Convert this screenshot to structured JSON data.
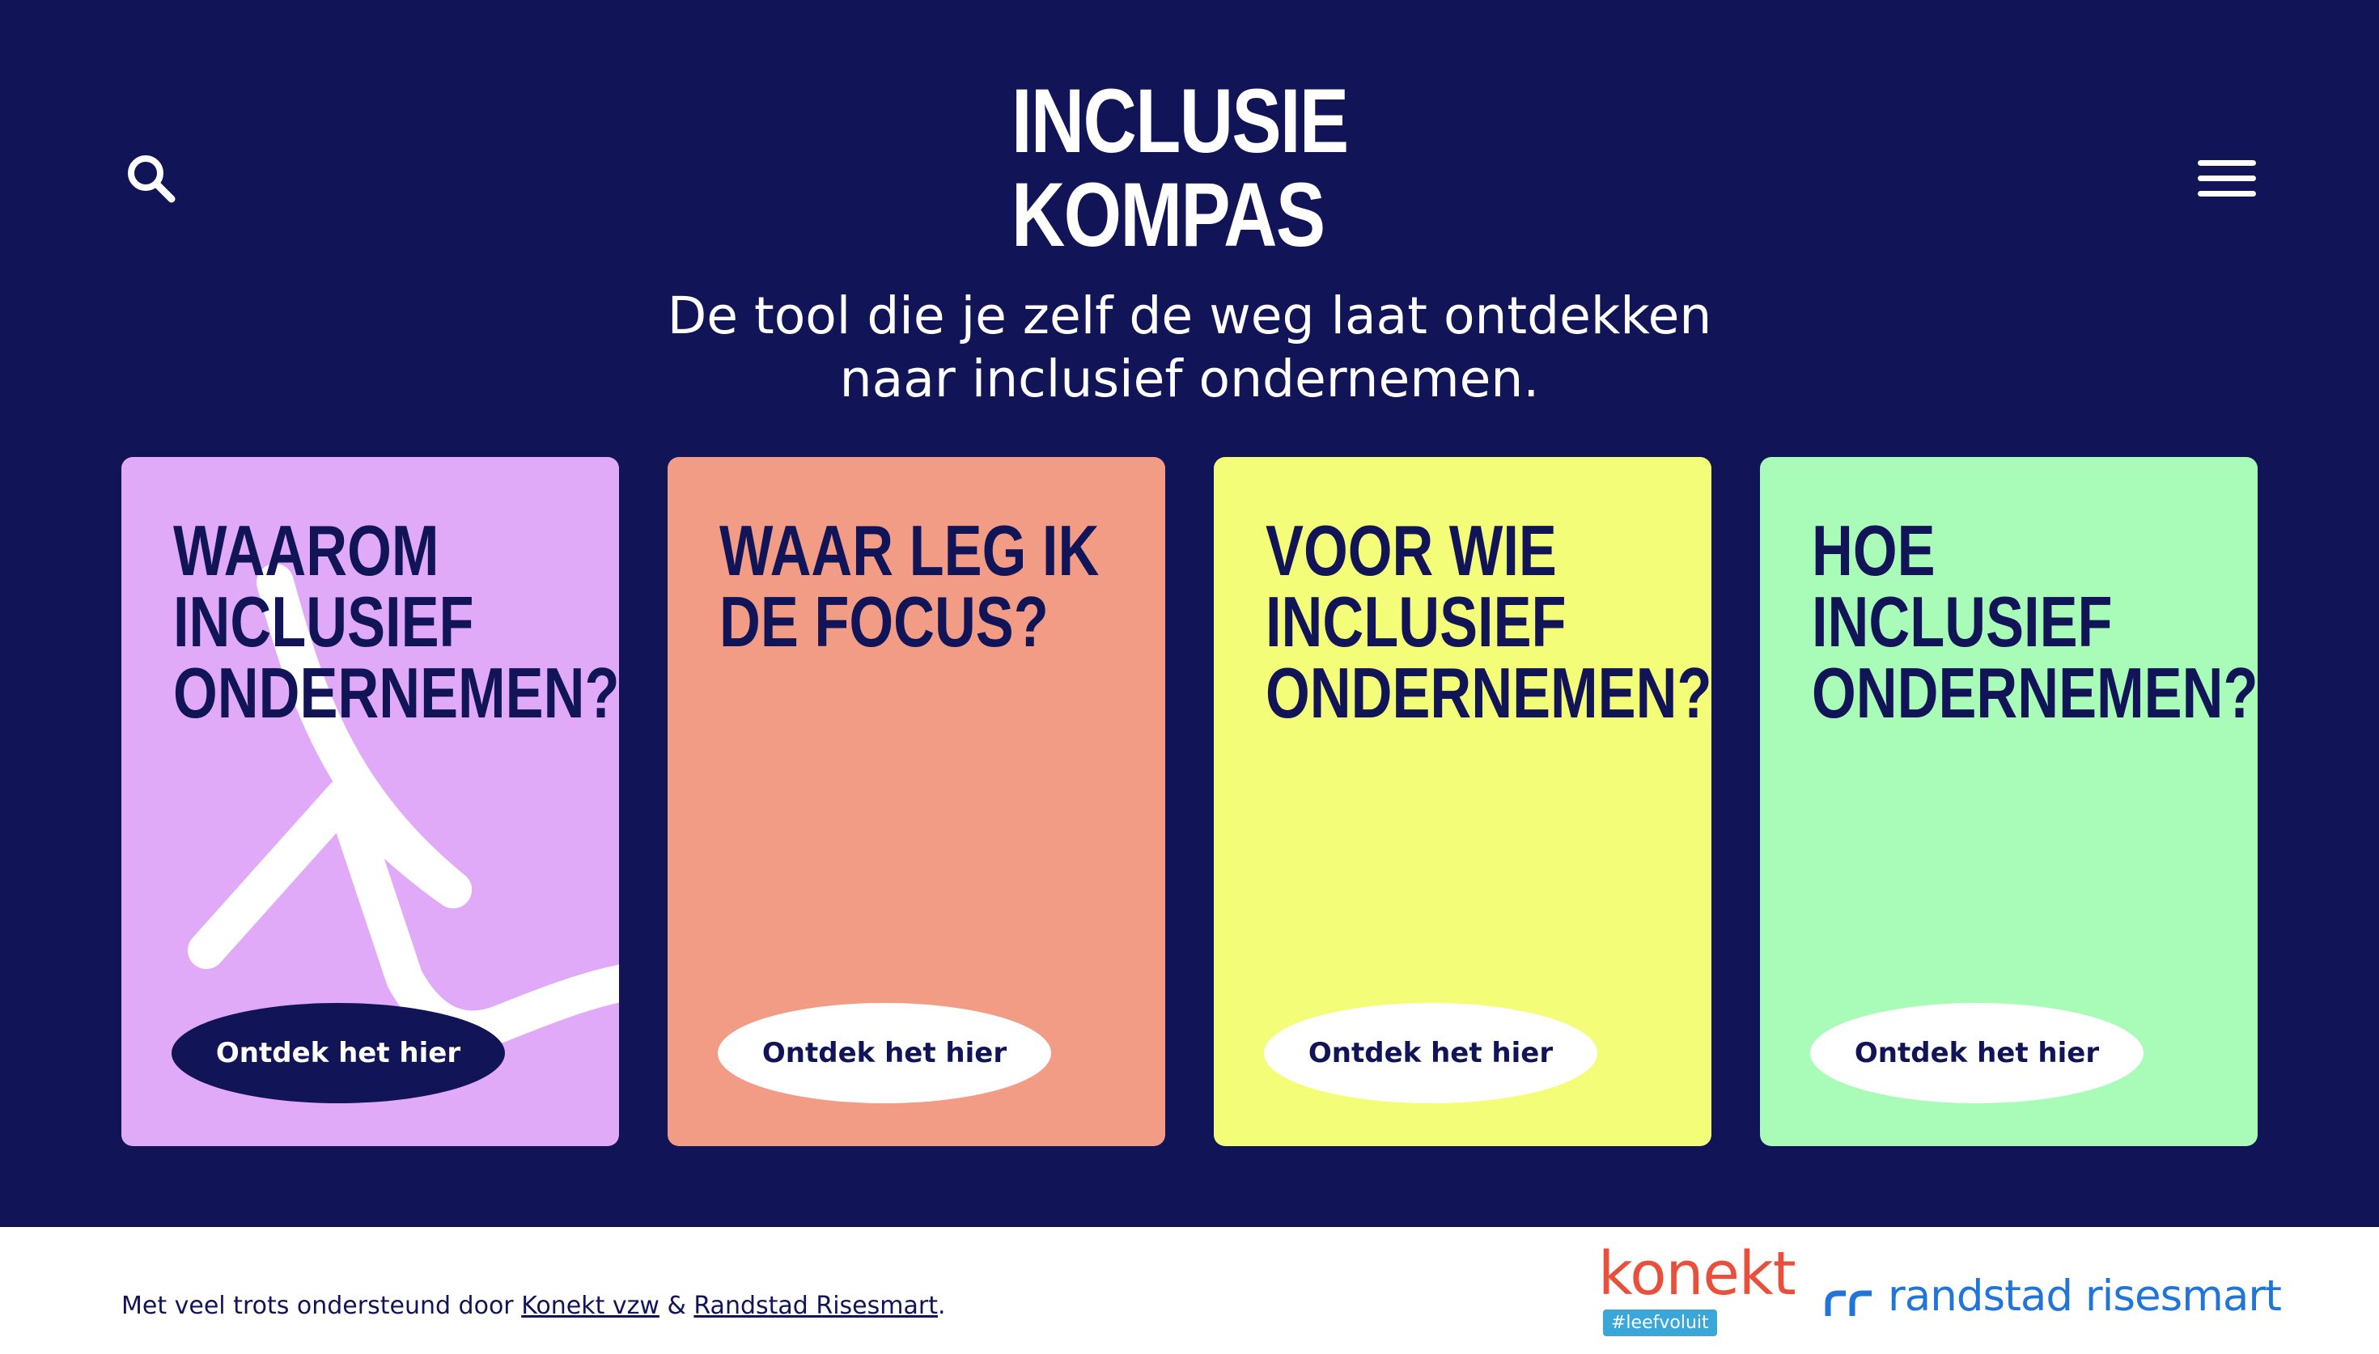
{
  "header": {
    "logo_line1": "INCLUSIE",
    "logo_line2": "KOMPAS",
    "search_icon": "search-icon",
    "menu_icon": "hamburger-menu-icon"
  },
  "tagline": {
    "line1": "De tool die je zelf de weg laat ontdekken",
    "line2": "naar inclusief ondernemen."
  },
  "cards": [
    {
      "title": "WAAROM INCLUSIEF ONDERNEMEN?",
      "button": "Ontdek het hier",
      "color": "#e1aaf9",
      "button_style": "dark"
    },
    {
      "title": "WAAR LEG IK DE FOCUS?",
      "button": "Ontdek het hier",
      "color": "#f29c86",
      "button_style": "light"
    },
    {
      "title": "VOOR WIE INCLUSIEF ONDERNEMEN?",
      "button": "Ontdek het hier",
      "color": "#f4fd78",
      "button_style": "light"
    },
    {
      "title": "HOE INCLUSIEF ONDERNEMEN?",
      "button": "Ontdek het hier",
      "color": "#a9fbb8",
      "button_style": "light"
    }
  ],
  "footer": {
    "text_before": "Met veel trots ondersteund door ",
    "link1": "Konekt vzw",
    "text_between": " & ",
    "link2": "Randstad Risesmart",
    "text_after": ".",
    "konekt_logo": "konekt",
    "konekt_tag": "#leefvoluit",
    "randstad_logo": "randstad risesmart"
  },
  "colors": {
    "background": "#111456",
    "footer_bg": "#ffffff",
    "konekt_red": "#e8503c",
    "konekt_blue": "#3aa7d8",
    "randstad_blue": "#2175d9"
  }
}
